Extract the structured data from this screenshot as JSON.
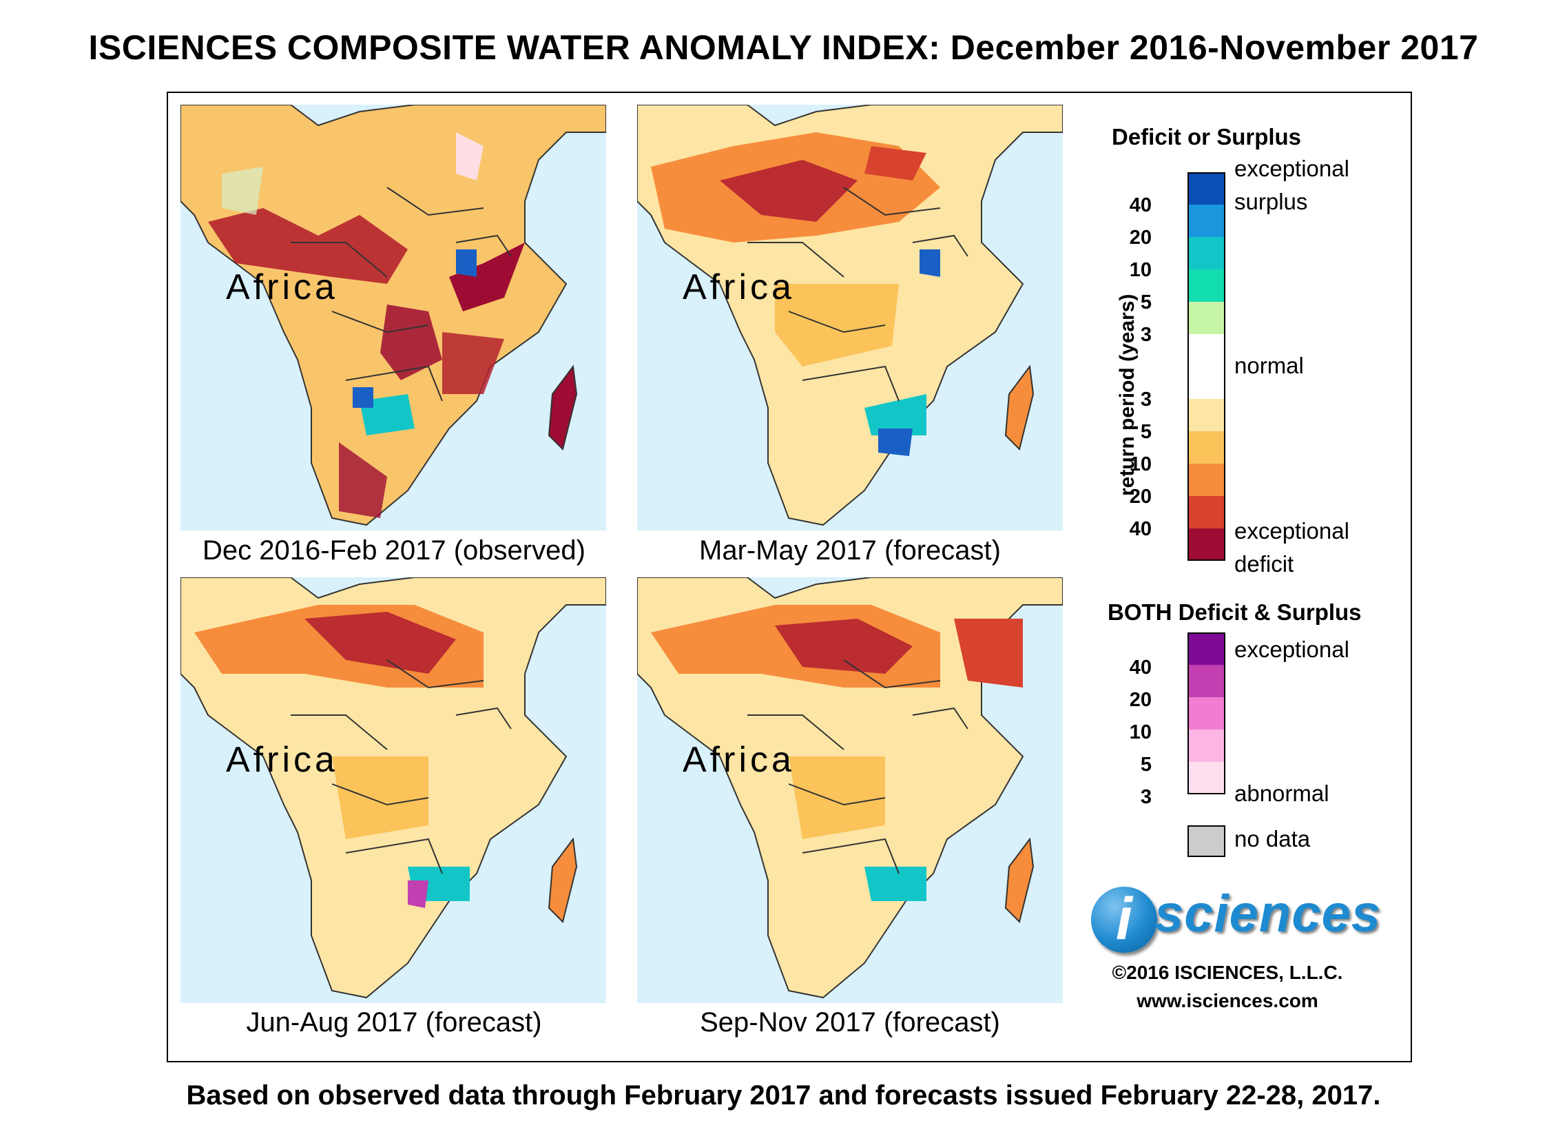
{
  "title": "ISCIENCES COMPOSITE WATER ANOMALY INDEX: December 2016-November 2017",
  "region_label": "Africa",
  "panels": [
    {
      "caption": "Dec 2016-Feb 2017 (observed)"
    },
    {
      "caption": "Mar-May 2017 (forecast)"
    },
    {
      "caption": "Jun-Aug 2017 (forecast)"
    },
    {
      "caption": "Sep-Nov 2017 (forecast)"
    }
  ],
  "legend": {
    "deficit_surplus": {
      "heading": "Deficit or Surplus",
      "axis_label": "return period (years)",
      "label_exceptional_surplus_1": "exceptional",
      "label_exceptional_surplus_2": "surplus",
      "label_normal": "normal",
      "label_exceptional_deficit_1": "exceptional",
      "label_exceptional_deficit_2": "deficit",
      "surplus_ticks": [
        "40",
        "20",
        "10",
        "5",
        "3"
      ],
      "deficit_ticks": [
        "3",
        "5",
        "10",
        "20",
        "40"
      ],
      "colors": [
        "#0a4fb5",
        "#1a96de",
        "#12c6c8",
        "#12ddb0",
        "#c7f5a6",
        "#ffffff",
        "#fde5a5",
        "#fbc35a",
        "#f68d3c",
        "#d8432f",
        "#9e0c33"
      ]
    },
    "both": {
      "heading": "BOTH Deficit & Surplus",
      "label_exceptional": "exceptional",
      "label_abnormal": "abnormal",
      "ticks": [
        "40",
        "20",
        "10",
        "5",
        "3"
      ],
      "colors": [
        "#7f0a96",
        "#c13fb0",
        "#f27dd0",
        "#fbb6e6",
        "#fde0f0"
      ]
    },
    "no_data_label": "no data",
    "no_data_color": "#cccccc"
  },
  "logo": {
    "i": "i",
    "word": "sciences"
  },
  "copyright": "©2016 ISCIENCES, L.L.C.",
  "website": "www.isciences.com",
  "footer": "Based on observed data through February 2017 and forecasts issued February 22-28, 2017."
}
